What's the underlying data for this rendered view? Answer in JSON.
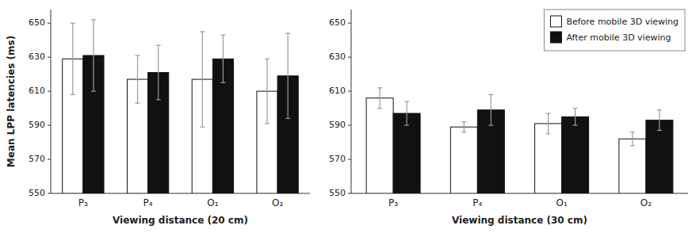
{
  "chart_data": [
    {
      "type": "bar",
      "xlabel": "Viewing distance (20 cm)",
      "ylabel": "Mean LPP latencies (ms)",
      "categories": [
        "P₃",
        "P₄",
        "O₁",
        "O₂"
      ],
      "series": [
        {
          "color": "#ffffff",
          "values": [
            629,
            617,
            617,
            610
          ],
          "errors": [
            21,
            14,
            28,
            19
          ]
        },
        {
          "color": "#111111",
          "values": [
            631,
            621,
            629,
            619
          ],
          "errors": [
            21,
            16,
            14,
            25
          ]
        }
      ],
      "ylim": [
        550,
        658
      ],
      "yticks": [
        550,
        570,
        590,
        610,
        630,
        650
      ]
    },
    {
      "type": "bar",
      "xlabel": "Viewing distance (30 cm)",
      "categories": [
        "P₃",
        "P₄",
        "O₁",
        "O₂"
      ],
      "series": [
        {
          "name": "Before mobile 3D viewing",
          "color": "#ffffff",
          "values": [
            606,
            589,
            591,
            582
          ],
          "errors": [
            6,
            3,
            6,
            4
          ]
        },
        {
          "name": "After mobile 3D viewing",
          "color": "#111111",
          "values": [
            597,
            599,
            595,
            593
          ],
          "errors": [
            7,
            9,
            5,
            6
          ]
        }
      ],
      "ylim": [
        550,
        658
      ],
      "yticks": [
        550,
        570,
        590,
        610,
        630,
        650
      ],
      "legend": "upper right"
    }
  ]
}
